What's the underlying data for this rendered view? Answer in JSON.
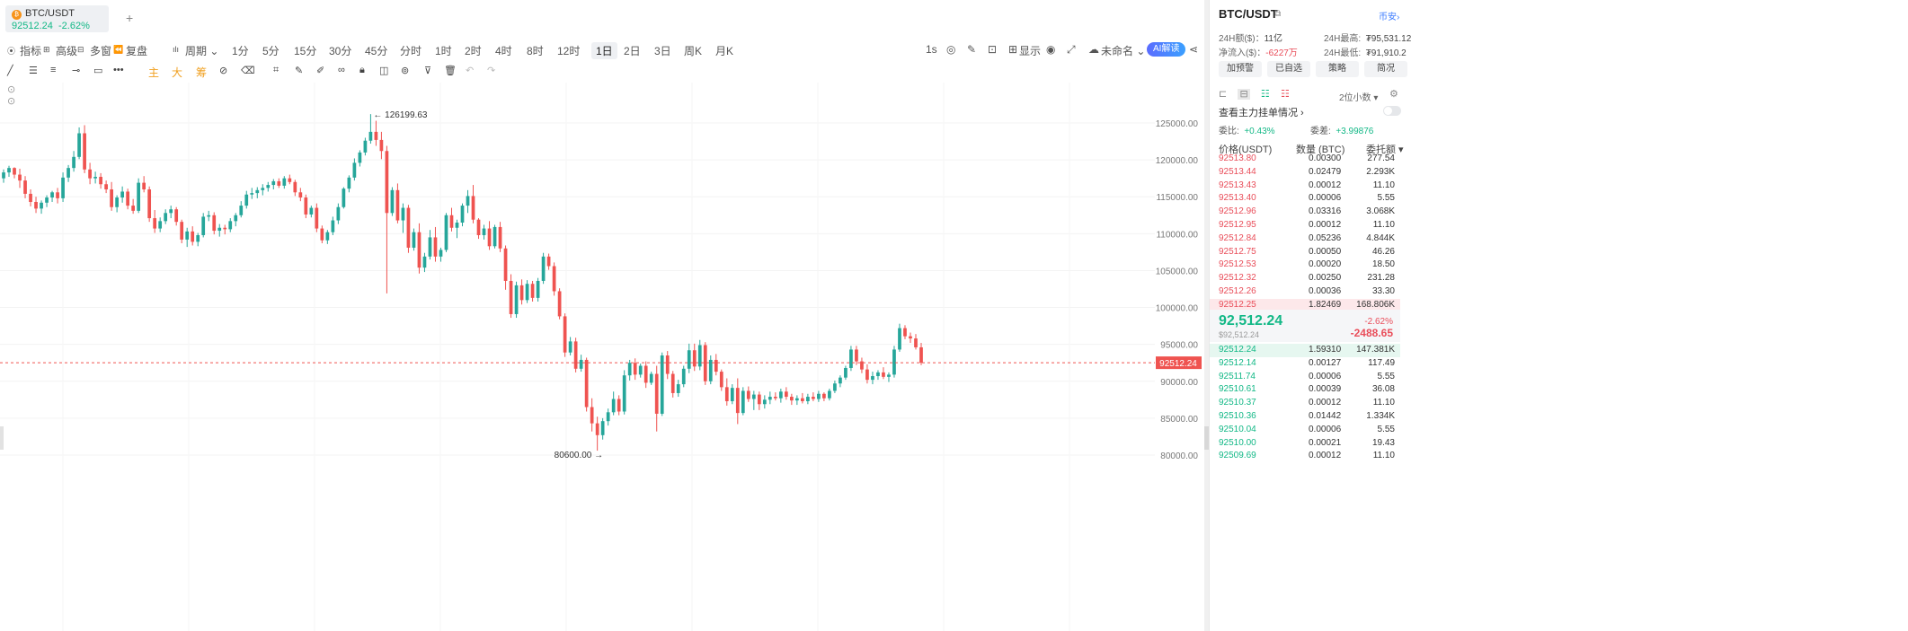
{
  "tab": {
    "symbol": "BTC/USDT",
    "price": "92512.24",
    "change": "-2.62%",
    "add": "+"
  },
  "toolbar1": {
    "items": [
      "指标",
      "高级",
      "多窗",
      "复盘",
      "周期",
      "1分",
      "5分",
      "15分",
      "30分",
      "45分",
      "分时",
      "1时",
      "2时",
      "4时",
      "8时",
      "12时",
      "1日",
      "2日",
      "3日",
      "周K",
      "月K"
    ],
    "active": "1日",
    "right": {
      "interval": "1s",
      "display": "显示",
      "unnamed": "未命名",
      "ai": "AI解读"
    }
  },
  "toolbar2": {
    "main": "主",
    "big": "大",
    "chip": "筹"
  },
  "chart_data": {
    "type": "candlestick",
    "y_ticks": [
      "125000.00",
      "120000.00",
      "115000.00",
      "110000.00",
      "105000.00",
      "100000.00",
      "95000.00",
      "90000.00",
      "85000.00",
      "80000.00"
    ],
    "ylim": [
      79500,
      127500
    ],
    "current_price": "92512.24",
    "high_label": "126199.63",
    "low_label": "80600.00",
    "candles": [
      [
        117500,
        118700,
        116900,
        118300
      ],
      [
        118300,
        119200,
        117700,
        118900
      ],
      [
        118900,
        119000,
        117500,
        118000
      ],
      [
        118000,
        118800,
        116200,
        117200
      ],
      [
        117200,
        117800,
        114800,
        115400
      ],
      [
        115400,
        116000,
        113700,
        114300
      ],
      [
        114300,
        115000,
        112800,
        113400
      ],
      [
        113400,
        114500,
        112700,
        114200
      ],
      [
        114200,
        115200,
        113600,
        114900
      ],
      [
        114900,
        115800,
        114300,
        115600
      ],
      [
        115600,
        116200,
        114100,
        114800
      ],
      [
        114800,
        118300,
        114300,
        117600
      ],
      [
        117600,
        119300,
        117000,
        118900
      ],
      [
        118900,
        121200,
        118400,
        120400
      ],
      [
        120400,
        124400,
        120100,
        123600
      ],
      [
        123600,
        124700,
        118200,
        118700
      ],
      [
        118700,
        119600,
        116700,
        117500
      ],
      [
        117500,
        118400,
        116800,
        117700
      ],
      [
        117700,
        118200,
        116100,
        116700
      ],
      [
        116700,
        117200,
        115500,
        116000
      ],
      [
        116000,
        117000,
        113100,
        113600
      ],
      [
        113600,
        115200,
        112900,
        114900
      ],
      [
        114900,
        116400,
        114200,
        115700
      ],
      [
        115700,
        116100,
        113300,
        113800
      ],
      [
        113800,
        114700,
        112700,
        113100
      ],
      [
        113100,
        117500,
        112800,
        116900
      ],
      [
        116900,
        117800,
        115600,
        116000
      ],
      [
        116000,
        116400,
        111600,
        112100
      ],
      [
        112100,
        113200,
        110100,
        110700
      ],
      [
        110700,
        112200,
        110200,
        111700
      ],
      [
        111700,
        113300,
        111300,
        112800
      ],
      [
        112800,
        113800,
        112100,
        113300
      ],
      [
        113300,
        113600,
        111100,
        111600
      ],
      [
        111600,
        111900,
        108700,
        109200
      ],
      [
        109200,
        110800,
        108200,
        110300
      ],
      [
        110300,
        111000,
        108400,
        108900
      ],
      [
        108900,
        110100,
        108300,
        109800
      ],
      [
        109800,
        112800,
        109500,
        112300
      ],
      [
        112300,
        113100,
        111700,
        112500
      ],
      [
        112500,
        112900,
        109900,
        110400
      ],
      [
        110400,
        111300,
        109600,
        110800
      ],
      [
        110800,
        111200,
        109900,
        110600
      ],
      [
        110600,
        112100,
        110200,
        111700
      ],
      [
        111700,
        112800,
        111000,
        112500
      ],
      [
        112500,
        114400,
        112200,
        113800
      ],
      [
        113800,
        115800,
        113400,
        115300
      ],
      [
        115300,
        116200,
        114700,
        115500
      ],
      [
        115500,
        116300,
        114800,
        115900
      ],
      [
        115900,
        116700,
        115200,
        116200
      ],
      [
        116200,
        117000,
        115700,
        116600
      ],
      [
        116600,
        117400,
        116000,
        117100
      ],
      [
        117100,
        117500,
        116200,
        116500
      ],
      [
        116500,
        117800,
        116100,
        117500
      ],
      [
        117500,
        118000,
        116700,
        117000
      ],
      [
        117000,
        117300,
        115100,
        115600
      ],
      [
        115600,
        116200,
        114400,
        114900
      ],
      [
        114900,
        115300,
        112100,
        112600
      ],
      [
        112600,
        113800,
        112200,
        113500
      ],
      [
        113500,
        114100,
        110200,
        110700
      ],
      [
        110700,
        111100,
        108700,
        109100
      ],
      [
        109100,
        110500,
        108600,
        110200
      ],
      [
        110200,
        112300,
        109800,
        111800
      ],
      [
        111800,
        114100,
        111300,
        113600
      ],
      [
        113600,
        116300,
        113400,
        116100
      ],
      [
        116100,
        117900,
        115600,
        117600
      ],
      [
        117600,
        120200,
        117200,
        119600
      ],
      [
        119600,
        121300,
        119100,
        121000
      ],
      [
        121000,
        123000,
        120600,
        122600
      ],
      [
        122600,
        126200,
        122200,
        123800
      ],
      [
        123800,
        125300,
        121900,
        122700
      ],
      [
        122700,
        123800,
        120100,
        121200
      ],
      [
        121200,
        121900,
        101900,
        112800
      ],
      [
        112800,
        116300,
        112400,
        115900
      ],
      [
        115900,
        116800,
        111400,
        111800
      ],
      [
        111800,
        114100,
        110100,
        113500
      ],
      [
        113500,
        113900,
        107400,
        108100
      ],
      [
        108100,
        110700,
        107700,
        110200
      ],
      [
        110200,
        111400,
        104600,
        105400
      ],
      [
        105400,
        107400,
        104800,
        106900
      ],
      [
        106900,
        110500,
        106500,
        109500
      ],
      [
        109500,
        110900,
        106200,
        106900
      ],
      [
        106900,
        108100,
        106200,
        107800
      ],
      [
        107800,
        112800,
        107500,
        112500
      ],
      [
        112500,
        113500,
        110300,
        110800
      ],
      [
        110800,
        111900,
        109400,
        111500
      ],
      [
        111500,
        114100,
        111000,
        113800
      ],
      [
        113800,
        115900,
        112800,
        115100
      ],
      [
        115100,
        116600,
        111400,
        111900
      ],
      [
        111900,
        112100,
        109300,
        109800
      ],
      [
        109800,
        111200,
        109200,
        110700
      ],
      [
        110700,
        111700,
        107800,
        108300
      ],
      [
        108300,
        111200,
        108000,
        110900
      ],
      [
        110900,
        111600,
        107500,
        108000
      ],
      [
        108000,
        108400,
        102400,
        103600
      ],
      [
        103600,
        104500,
        98600,
        99100
      ],
      [
        99100,
        103500,
        98600,
        103000
      ],
      [
        103000,
        103800,
        100400,
        101000
      ],
      [
        101000,
        103700,
        100600,
        103200
      ],
      [
        103200,
        103600,
        100800,
        101300
      ],
      [
        101300,
        104000,
        100800,
        103600
      ],
      [
        103600,
        107400,
        103200,
        106900
      ],
      [
        106900,
        107300,
        105100,
        105600
      ],
      [
        105600,
        106100,
        101600,
        102200
      ],
      [
        102200,
        102600,
        98400,
        98800
      ],
      [
        98800,
        99200,
        93300,
        93900
      ],
      [
        93900,
        96000,
        93500,
        95400
      ],
      [
        95400,
        95900,
        91200,
        91700
      ],
      [
        91700,
        93600,
        91300,
        92900
      ],
      [
        92900,
        93200,
        85900,
        86500
      ],
      [
        86500,
        87700,
        83200,
        84300
      ],
      [
        84300,
        85200,
        80600,
        82700
      ],
      [
        82700,
        85000,
        82100,
        84600
      ],
      [
        84600,
        86300,
        84000,
        85800
      ],
      [
        85800,
        88600,
        85400,
        87600
      ],
      [
        87600,
        88100,
        85400,
        85900
      ],
      [
        85900,
        91500,
        85500,
        90800
      ],
      [
        90800,
        92900,
        90100,
        92500
      ],
      [
        92500,
        93100,
        90200,
        90900
      ],
      [
        90900,
        92400,
        90500,
        92100
      ],
      [
        92100,
        92700,
        89100,
        89800
      ],
      [
        89800,
        91300,
        89500,
        91000
      ],
      [
        91000,
        92100,
        83200,
        85600
      ],
      [
        85600,
        93900,
        85300,
        93500
      ],
      [
        93500,
        94100,
        90300,
        91000
      ],
      [
        91000,
        91400,
        87800,
        88400
      ],
      [
        88400,
        90200,
        87900,
        89600
      ],
      [
        89600,
        92100,
        89200,
        91700
      ],
      [
        91700,
        95100,
        91100,
        94200
      ],
      [
        94200,
        95100,
        91400,
        92000
      ],
      [
        92000,
        95600,
        91500,
        94900
      ],
      [
        94900,
        95300,
        89500,
        90000
      ],
      [
        90000,
        93500,
        89600,
        92900
      ],
      [
        92900,
        93700,
        90800,
        91300
      ],
      [
        91300,
        91600,
        88700,
        89200
      ],
      [
        89200,
        90400,
        86700,
        87300
      ],
      [
        87300,
        89600,
        86900,
        89100
      ],
      [
        89100,
        90400,
        84200,
        85700
      ],
      [
        85700,
        89200,
        85400,
        88700
      ],
      [
        88700,
        89300,
        87200,
        87600
      ],
      [
        87600,
        88700,
        86100,
        88200
      ],
      [
        88200,
        88600,
        86100,
        86900
      ],
      [
        86900,
        88100,
        86300,
        87500
      ],
      [
        87500,
        88600,
        86900,
        87900
      ],
      [
        87900,
        88500,
        87400,
        87700
      ],
      [
        87700,
        89000,
        87100,
        88600
      ],
      [
        88600,
        89200,
        87500,
        87900
      ],
      [
        87900,
        88300,
        86800,
        87400
      ],
      [
        87400,
        88100,
        86800,
        87700
      ],
      [
        87700,
        88400,
        87000,
        87300
      ],
      [
        87300,
        88300,
        86900,
        87900
      ],
      [
        87900,
        88500,
        87300,
        87600
      ],
      [
        87600,
        88700,
        87200,
        88300
      ],
      [
        88300,
        88500,
        87300,
        87700
      ],
      [
        87700,
        89000,
        87400,
        88700
      ],
      [
        88700,
        90100,
        88400,
        89700
      ],
      [
        89700,
        90800,
        89200,
        90500
      ],
      [
        90500,
        92100,
        90200,
        91800
      ],
      [
        91800,
        94800,
        91400,
        94300
      ],
      [
        94300,
        94800,
        92200,
        92700
      ],
      [
        92700,
        93200,
        91100,
        91600
      ],
      [
        91600,
        92300,
        89700,
        90200
      ],
      [
        90200,
        91300,
        89600,
        90700
      ],
      [
        90700,
        91500,
        90200,
        91200
      ],
      [
        91200,
        91900,
        90300,
        90600
      ],
      [
        90600,
        91200,
        89900,
        90900
      ],
      [
        90900,
        94800,
        90500,
        94300
      ],
      [
        94300,
        97800,
        94000,
        97200
      ],
      [
        97200,
        97600,
        95700,
        96100
      ],
      [
        96100,
        96600,
        95200,
        95800
      ],
      [
        95800,
        96400,
        94300,
        94600
      ],
      [
        94600,
        95200,
        92200,
        92512
      ]
    ]
  },
  "panel": {
    "title": "BTC/USDT",
    "exchange": "币安",
    "vol_label": "24H额($)：",
    "vol": "11亿",
    "high_label": "24H最高:",
    "high": "₮95,531.12",
    "inflow_label": "净流入($)：",
    "inflow": "-6227万",
    "low_label": "24H最低:",
    "low": "₮91,910.2",
    "buttons": [
      "加预警",
      "已自选",
      "策略",
      "简况"
    ],
    "decimal": "2位小数",
    "main_orders": "查看主力挂单情况",
    "ratio_label": "委比:",
    "ratio": "+0.43%",
    "diff_label": "委差:",
    "diff": "+3.99876",
    "head_price": "价格(USDT)",
    "head_qty": "数量 (BTC)",
    "head_total": "委托额",
    "asks": [
      [
        "92513.80",
        "0.00300",
        "277.54"
      ],
      [
        "92513.44",
        "0.02479",
        "2.293K"
      ],
      [
        "92513.43",
        "0.00012",
        "11.10"
      ],
      [
        "92513.40",
        "0.00006",
        "5.55"
      ],
      [
        "92512.96",
        "0.03316",
        "3.068K"
      ],
      [
        "92512.95",
        "0.00012",
        "11.10"
      ],
      [
        "92512.84",
        "0.05236",
        "4.844K"
      ],
      [
        "92512.75",
        "0.00050",
        "46.26"
      ],
      [
        "92512.53",
        "0.00020",
        "18.50"
      ],
      [
        "92512.32",
        "0.00250",
        "231.28"
      ],
      [
        "92512.26",
        "0.00036",
        "33.30"
      ],
      [
        "92512.25",
        "1.82469",
        "168.806K"
      ]
    ],
    "mid_price": "92,512.24",
    "mid_sub": "$92,512.24",
    "mid_pct": "-2.62%",
    "mid_chg": "-2488.65",
    "bids": [
      [
        "92512.24",
        "1.59310",
        "147.381K"
      ],
      [
        "92512.14",
        "0.00127",
        "117.49"
      ],
      [
        "92511.74",
        "0.00006",
        "5.55"
      ],
      [
        "92510.61",
        "0.00039",
        "36.08"
      ],
      [
        "92510.37",
        "0.00012",
        "11.10"
      ],
      [
        "92510.36",
        "0.01442",
        "1.334K"
      ],
      [
        "92510.04",
        "0.00006",
        "5.55"
      ],
      [
        "92510.00",
        "0.00021",
        "19.43"
      ],
      [
        "92509.69",
        "0.00012",
        "11.10"
      ]
    ]
  }
}
